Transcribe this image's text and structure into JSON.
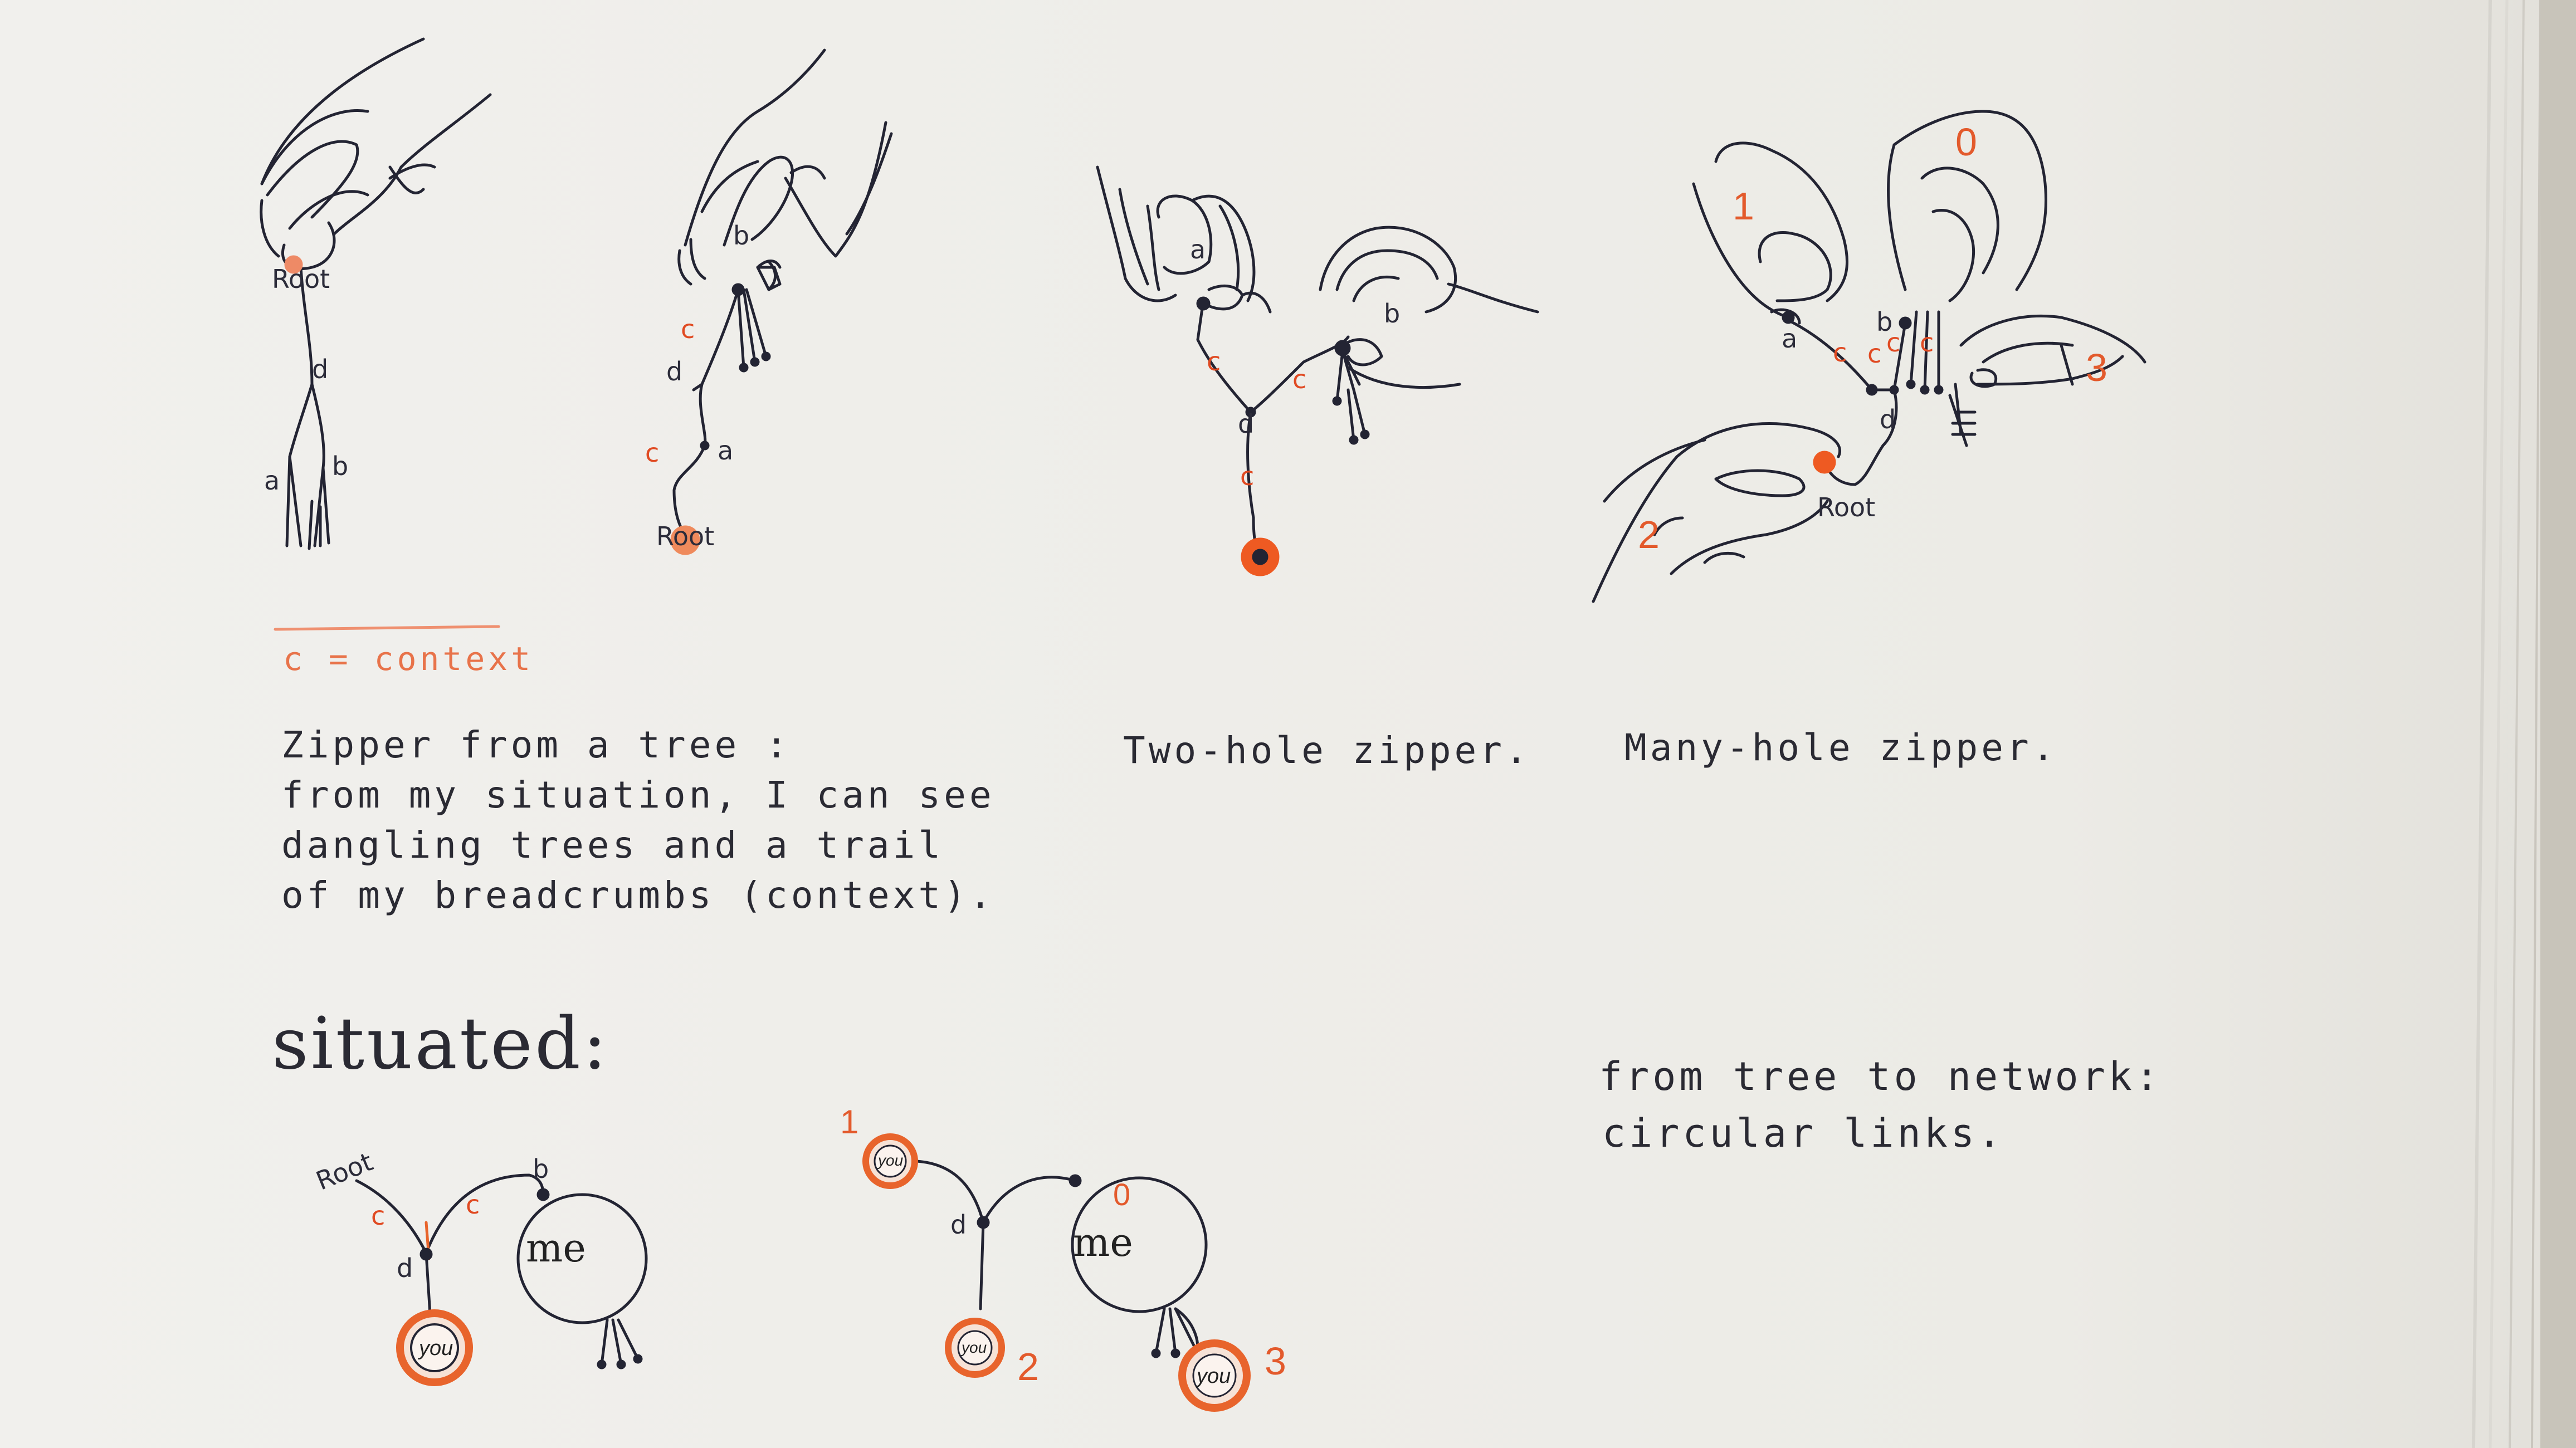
{
  "legend": {
    "text": "c = context"
  },
  "figure1": {
    "caption_lines": [
      "Zipper from a tree :",
      "from my situation, I can see",
      "dangling trees and a trail",
      "of my breadcrumbs (context)."
    ],
    "labels": {
      "root": "Root",
      "d": "d",
      "a": "a",
      "b": "b"
    }
  },
  "figure2": {
    "labels": {
      "b": "b",
      "c1": "c",
      "d": "d",
      "c2": "c",
      "a": "a",
      "root": "Root"
    }
  },
  "figure3": {
    "caption": "Two-hole zipper.",
    "labels": {
      "a": "a",
      "b": "b",
      "c1": "c",
      "c2": "c",
      "d": "d",
      "c3": "c"
    }
  },
  "figure4": {
    "caption": "Many-hole zipper.",
    "labels": {
      "n1": "1",
      "n0": "0",
      "a": "a",
      "b": "b",
      "c1": "c",
      "c2": "c",
      "c3": "c",
      "c4": "c",
      "d": "d",
      "n3": "3",
      "n2": "2",
      "root": "Root"
    }
  },
  "situated": {
    "heading": "situated:",
    "left": {
      "root": "Root",
      "c1": "c",
      "c2": "c",
      "b": "b",
      "d": "d",
      "me": "me",
      "you": "you"
    },
    "right": {
      "n1": "1",
      "you1": "you",
      "d": "d",
      "n0": "0",
      "me": "me",
      "you2": "you",
      "n2": "2",
      "you3": "you",
      "n3": "3"
    }
  },
  "network_note": {
    "lines": [
      "from tree to network:",
      "circular links."
    ]
  },
  "colors": {
    "ink": "#232433",
    "orange": "#e8642c",
    "paper": "#efeeea"
  }
}
